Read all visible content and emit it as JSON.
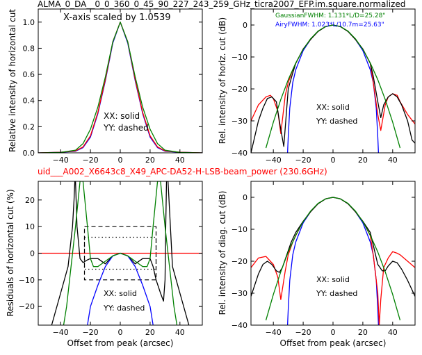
{
  "figure": {
    "title": "ALMA_0_DA__0_0_360_0_45_90_227_243_259_GHz_ticra2007_EFP.im.square.normalized",
    "subtitle": "uid___A002_X6643c8_X49_APC-DA52-H-LSB-beam_power (230.6GHz)",
    "subtitle_color": "#ff0000"
  },
  "colors": {
    "xx_blue": "#0000ff",
    "yy_red": "#ff0000",
    "gaussian_green": "#008000",
    "black": "#000000"
  },
  "panels": {
    "tl": {
      "annotation": "X-axis scaled by 1.0539",
      "ylabel": "Relative intensity of horizontal cut",
      "legend1": "XX: solid",
      "legend2": "YY: dashed",
      "xticks": [
        "−40",
        "−20",
        "0",
        "20",
        "40"
      ],
      "yticks": [
        "0.0",
        "0.2",
        "0.4",
        "0.6",
        "0.8",
        "1.0"
      ]
    },
    "tr": {
      "ylabel": "Rel. intensity of horiz. cut (dB)",
      "gauss_note": "GaussianFWHM: 1.131*L/D=25.28\"",
      "airy_note": "AiryFWHM: 1.023*L/10.7m=25.63\"",
      "legend1": "XX: solid",
      "legend2": "YY: dashed",
      "xticks": [
        "−40",
        "−20",
        "0",
        "20",
        "40"
      ],
      "yticks": [
        "0",
        "−10",
        "−20",
        "−30",
        "−40"
      ]
    },
    "bl": {
      "ylabel": "Residuals of horizontal cut (%)",
      "xlabel": "Offset from peak (arcsec)",
      "legend1": "XX: solid",
      "legend2": "YY: dashed",
      "xticks": [
        "−40",
        "−20",
        "0",
        "20",
        "40"
      ],
      "yticks": [
        "20",
        "10",
        "0",
        "−10",
        "−20"
      ]
    },
    "br": {
      "ylabel": "Rel. intensity of diag. cut (dB)",
      "xlabel": "Offset from peak (arcsec)",
      "legend1": "XX: solid",
      "legend2": "YY: dashed",
      "xticks": [
        "−40",
        "−20",
        "0",
        "20",
        "40"
      ],
      "yticks": [
        "0",
        "−10",
        "−20",
        "−30",
        "−40"
      ]
    }
  },
  "chart_data": [
    {
      "type": "line",
      "panel": "tl",
      "xlim": [
        -55,
        55
      ],
      "ylim": [
        0,
        1.1
      ],
      "series": [
        {
          "color": "#0000ff",
          "x": [
            -55,
            -40,
            -30,
            -25,
            -20,
            -15,
            -10,
            -5,
            0,
            5,
            10,
            15,
            20,
            25,
            30,
            40,
            55
          ],
          "y": [
            0,
            0.004,
            0.012,
            0.04,
            0.12,
            0.3,
            0.55,
            0.84,
            1.0,
            0.84,
            0.55,
            0.3,
            0.12,
            0.04,
            0.012,
            0.004,
            0
          ]
        },
        {
          "color": "#ff0000",
          "x": [
            -55,
            -40,
            -30,
            -25,
            -20,
            -15,
            -10,
            -5,
            0,
            5,
            10,
            15,
            20,
            25,
            30,
            40,
            55
          ],
          "y": [
            0,
            0.005,
            0.015,
            0.045,
            0.13,
            0.31,
            0.56,
            0.85,
            1.0,
            0.85,
            0.56,
            0.31,
            0.13,
            0.045,
            0.015,
            0.005,
            0
          ]
        },
        {
          "color": "#008000",
          "x": [
            -55,
            -40,
            -30,
            -25,
            -20,
            -15,
            -10,
            -5,
            0,
            5,
            10,
            15,
            20,
            25,
            30,
            40,
            55
          ],
          "y": [
            0,
            0.003,
            0.02,
            0.07,
            0.18,
            0.35,
            0.58,
            0.85,
            1.0,
            0.85,
            0.58,
            0.35,
            0.18,
            0.07,
            0.02,
            0.003,
            0
          ]
        }
      ]
    },
    {
      "type": "line",
      "panel": "tr",
      "xlim": [
        -55,
        55
      ],
      "ylim": [
        -40,
        5
      ],
      "series": [
        {
          "color": "#0000ff",
          "x": [
            -30.5,
            -30,
            -29,
            -27,
            -25,
            -20,
            -15,
            -10,
            -5,
            0,
            5,
            10,
            15,
            20,
            25,
            27,
            29,
            30,
            30.5
          ],
          "y": [
            -40,
            -35,
            -26,
            -18,
            -14,
            -8,
            -4.5,
            -2,
            -0.5,
            0,
            -0.5,
            -2,
            -4.5,
            -8,
            -14,
            -18,
            -26,
            -35,
            -40
          ]
        },
        {
          "color": "#ff0000",
          "x": [
            -55,
            -50,
            -45,
            -42,
            -40,
            -37,
            -35,
            -32,
            -30,
            -27,
            -25,
            -20,
            -15,
            -10,
            -5,
            0,
            5,
            10,
            15,
            20,
            25,
            27,
            30,
            32,
            35,
            37,
            40,
            43,
            45,
            50,
            55
          ],
          "y": [
            -30,
            -25,
            -22.5,
            -22,
            -23,
            -27,
            -34,
            -22,
            -18,
            -14,
            -12,
            -7.5,
            -4.5,
            -2,
            -0.5,
            0,
            -0.5,
            -2,
            -4.5,
            -7.5,
            -12,
            -18,
            -28,
            -33,
            -25,
            -22.5,
            -21.5,
            -22,
            -24,
            -28,
            -31
          ]
        },
        {
          "color": "#000000",
          "x": [
            -55,
            -50,
            -47,
            -44,
            -41,
            -38,
            -36,
            -33,
            -30,
            -27,
            -25,
            -20,
            -15,
            -10,
            -5,
            0,
            5,
            10,
            15,
            20,
            25,
            27,
            30,
            32,
            34,
            37,
            40,
            43,
            46,
            50,
            53,
            55
          ],
          "y": [
            -40,
            -30,
            -26,
            -23,
            -22.5,
            -24,
            -30,
            -38,
            -20,
            -15,
            -12,
            -7.5,
            -4.5,
            -2,
            -0.5,
            0,
            -0.5,
            -2,
            -4.5,
            -7.5,
            -12,
            -16,
            -24,
            -29,
            -25,
            -22.5,
            -21.5,
            -22.5,
            -25,
            -30,
            -36,
            -37
          ]
        },
        {
          "color": "#008000",
          "x": [
            -45,
            -40,
            -35,
            -30,
            -25,
            -20,
            -15,
            -10,
            -5,
            0,
            5,
            10,
            15,
            20,
            25,
            30,
            35,
            40,
            45
          ],
          "y": [
            -38.5,
            -30.4,
            -23.3,
            -17.1,
            -11.9,
            -7.6,
            -4.3,
            -1.9,
            -0.5,
            0,
            -0.5,
            -1.9,
            -4.3,
            -7.6,
            -11.9,
            -17.1,
            -23.3,
            -30.4,
            -38.5
          ]
        }
      ]
    },
    {
      "type": "line",
      "panel": "bl",
      "xlim": [
        -55,
        55
      ],
      "ylim": [
        -27,
        27
      ],
      "series": [
        {
          "color": "#ff0000",
          "x": [
            -55,
            55
          ],
          "y": [
            0,
            0
          ]
        },
        {
          "color": "#000000",
          "x": [
            -46,
            -40,
            -35,
            -32,
            -31,
            -30.5,
            -30,
            -29,
            -27,
            -25,
            -22,
            -20,
            -15,
            -10,
            -5,
            0,
            5,
            10,
            15,
            20,
            22,
            24,
            27,
            29,
            30,
            30.5,
            31,
            32,
            35,
            40,
            46
          ],
          "y": [
            -27,
            -15,
            -5,
            10,
            20,
            27,
            27,
            10,
            -2,
            -3.5,
            -2.5,
            -2,
            -2,
            -4,
            -1,
            0,
            -1,
            -4,
            -2,
            -2,
            -5,
            -10,
            -15,
            -18,
            -10,
            10,
            27,
            27,
            -5,
            -15,
            -27
          ]
        },
        {
          "color": "#0000ff",
          "x": [
            -22,
            -20,
            -15,
            -10,
            -5,
            0,
            5,
            10,
            15,
            20,
            22
          ],
          "y": [
            -27,
            -20,
            -12,
            -5,
            -1,
            0,
            -1,
            -5,
            -12,
            -20,
            -27
          ]
        },
        {
          "color": "#008000",
          "x": [
            -38,
            -36,
            -33,
            -30,
            -27,
            -25,
            -22,
            -20,
            -18,
            -15,
            -10,
            -5,
            0,
            5,
            10,
            15,
            18,
            20,
            22,
            25,
            27,
            30,
            33,
            36,
            38
          ],
          "y": [
            -27,
            -20,
            -5,
            10,
            27,
            27,
            10,
            -2,
            -5,
            -5,
            -3,
            -1,
            0,
            -1,
            -3,
            -5,
            -5,
            -2,
            10,
            27,
            27,
            10,
            -5,
            -20,
            -27
          ]
        }
      ],
      "boxes": [
        {
          "style": "dashed",
          "x": [
            -24,
            24
          ],
          "y": [
            -10,
            10
          ]
        },
        {
          "style": "dotted",
          "x": [
            -24,
            24
          ],
          "y": [
            -6,
            6
          ]
        }
      ]
    },
    {
      "type": "line",
      "panel": "br",
      "xlim": [
        -55,
        55
      ],
      "ylim": [
        -40,
        5
      ],
      "series": [
        {
          "color": "#0000ff",
          "x": [
            -30.5,
            -30,
            -29,
            -27,
            -25,
            -20,
            -15,
            -10,
            -5,
            0,
            5,
            10,
            15,
            20,
            25,
            27,
            29,
            30,
            30.5
          ],
          "y": [
            -40,
            -35,
            -26,
            -18,
            -14,
            -8,
            -4.5,
            -2,
            -0.5,
            0,
            -0.5,
            -2,
            -4.5,
            -8,
            -14,
            -18,
            -26,
            -35,
            -40
          ]
        },
        {
          "color": "#ff0000",
          "x": [
            -55,
            -50,
            -45,
            -42,
            -40,
            -37,
            -35,
            -32,
            -30,
            -27,
            -25,
            -20,
            -15,
            -10,
            -5,
            0,
            5,
            10,
            15,
            20,
            25,
            27,
            30,
            31,
            32,
            34,
            37,
            40,
            43,
            45,
            50,
            55
          ],
          "y": [
            -22,
            -19,
            -18.5,
            -20,
            -21,
            -25,
            -32,
            -23,
            -18,
            -14,
            -12,
            -7.5,
            -4.5,
            -2,
            -0.5,
            0,
            -0.5,
            -2,
            -4.5,
            -7.5,
            -12,
            -18,
            -30,
            -40,
            -32,
            -22,
            -19,
            -17,
            -17.5,
            -18,
            -20,
            -22
          ]
        },
        {
          "color": "#000000",
          "x": [
            -55,
            -50,
            -47,
            -44,
            -41,
            -38,
            -36,
            -34,
            -31,
            -28,
            -25,
            -20,
            -15,
            -10,
            -5,
            0,
            5,
            10,
            15,
            20,
            25,
            28,
            30,
            33,
            35,
            37,
            40,
            43,
            46,
            50,
            55
          ],
          "y": [
            -31,
            -24,
            -21,
            -20,
            -21,
            -23,
            -23.5,
            -22,
            -18,
            -14,
            -11,
            -7.5,
            -4.5,
            -2,
            -0.5,
            0,
            -0.5,
            -2,
            -4.5,
            -7.5,
            -11,
            -17,
            -21,
            -23,
            -23,
            -21.5,
            -20,
            -20.5,
            -22.5,
            -26,
            -31
          ]
        },
        {
          "color": "#008000",
          "x": [
            -45,
            -40,
            -35,
            -30,
            -25,
            -20,
            -15,
            -10,
            -5,
            0,
            5,
            10,
            15,
            20,
            25,
            30,
            35,
            40,
            45
          ],
          "y": [
            -38.5,
            -30.4,
            -23.3,
            -17.1,
            -11.9,
            -7.6,
            -4.3,
            -1.9,
            -0.5,
            0,
            -0.5,
            -1.9,
            -4.3,
            -7.6,
            -11.9,
            -17.1,
            -23.3,
            -30.4,
            -38.5
          ]
        }
      ]
    }
  ]
}
